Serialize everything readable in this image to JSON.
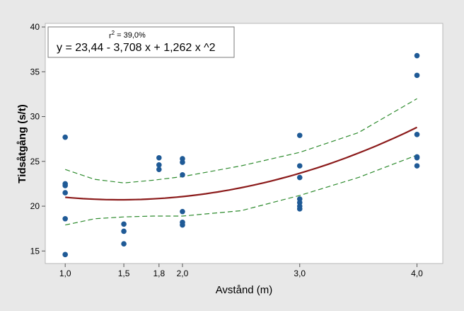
{
  "chart_data": {
    "type": "scatter",
    "title": "",
    "xlabel": "Avstånd (m)",
    "ylabel": "Tidsåtgång (s/t)",
    "xlim": [
      0.83,
      4.22
    ],
    "ylim": [
      13.6,
      40.4
    ],
    "xticks": [
      1.0,
      1.5,
      1.8,
      2.0,
      3.0,
      4.0
    ],
    "xtick_labels": [
      "1,0",
      "1,5",
      "1,8",
      "2,0",
      "3,0",
      "4,0"
    ],
    "yticks": [
      15,
      20,
      25,
      30,
      35,
      40
    ],
    "ytick_labels": [
      "15",
      "20",
      "25",
      "30",
      "35",
      "40"
    ],
    "grid": false,
    "annotation": {
      "r2_label": "r",
      "r2_sup": "2",
      "r2_value": "=  39,0%",
      "equation": "y = 23,44 - 3,708 x + 1,262 x ^2"
    },
    "colors": {
      "points": "#1f5a96",
      "fit": "#8b1a1a",
      "interval": "#2e8b2e",
      "plot_bg": "#ffffff",
      "frame_bg": "#e8e8e8"
    },
    "points": [
      {
        "x": 1.0,
        "y": 27.7
      },
      {
        "x": 1.0,
        "y": 22.5
      },
      {
        "x": 1.0,
        "y": 22.3
      },
      {
        "x": 1.0,
        "y": 21.5
      },
      {
        "x": 1.0,
        "y": 18.6
      },
      {
        "x": 1.0,
        "y": 14.6
      },
      {
        "x": 1.5,
        "y": 18.0
      },
      {
        "x": 1.5,
        "y": 17.2
      },
      {
        "x": 1.5,
        "y": 15.8
      },
      {
        "x": 1.8,
        "y": 25.4
      },
      {
        "x": 1.8,
        "y": 24.6
      },
      {
        "x": 1.8,
        "y": 24.1
      },
      {
        "x": 2.0,
        "y": 25.3
      },
      {
        "x": 2.0,
        "y": 24.9
      },
      {
        "x": 2.0,
        "y": 23.5
      },
      {
        "x": 2.0,
        "y": 19.4
      },
      {
        "x": 2.0,
        "y": 18.2
      },
      {
        "x": 2.0,
        "y": 17.9
      },
      {
        "x": 3.0,
        "y": 27.9
      },
      {
        "x": 3.0,
        "y": 24.5
      },
      {
        "x": 3.0,
        "y": 23.2
      },
      {
        "x": 3.0,
        "y": 20.8
      },
      {
        "x": 3.0,
        "y": 20.4
      },
      {
        "x": 3.0,
        "y": 20.0
      },
      {
        "x": 3.0,
        "y": 19.7
      },
      {
        "x": 4.0,
        "y": 36.8
      },
      {
        "x": 4.0,
        "y": 34.6
      },
      {
        "x": 4.0,
        "y": 28.0
      },
      {
        "x": 4.0,
        "y": 25.5
      },
      {
        "x": 4.0,
        "y": 25.4
      },
      {
        "x": 4.0,
        "y": 24.5
      }
    ],
    "fit": {
      "b0": 23.44,
      "b1": -3.708,
      "b2": 1.262,
      "x_range": [
        1.0,
        4.0
      ]
    },
    "interval_upper": {
      "x": [
        1.0,
        1.25,
        1.5,
        1.75,
        2.0,
        2.5,
        3.0,
        3.5,
        4.0
      ],
      "y": [
        24.1,
        23.0,
        22.6,
        22.9,
        23.3,
        24.5,
        26.0,
        28.2,
        32.0
      ]
    },
    "interval_lower": {
      "x": [
        1.0,
        1.25,
        1.5,
        1.75,
        2.0,
        2.5,
        3.0,
        3.5,
        4.0
      ],
      "y": [
        17.9,
        18.6,
        18.8,
        18.9,
        18.9,
        19.5,
        21.2,
        23.2,
        25.7
      ]
    }
  }
}
